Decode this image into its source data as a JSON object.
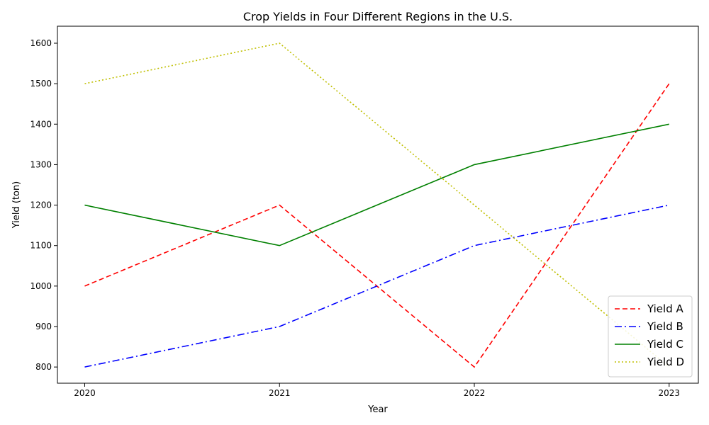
{
  "chart_data": {
    "type": "line",
    "title": "Crop Yields in Four Different Regions in the U.S.",
    "xlabel": "Year",
    "ylabel": "Yield (ton)",
    "x": [
      2020,
      2021,
      2022,
      2023
    ],
    "x_tick_labels": [
      "2020",
      "2021",
      "2022",
      "2023"
    ],
    "y_ticks": [
      800,
      900,
      1000,
      1100,
      1200,
      1300,
      1400,
      1500,
      1600
    ],
    "xlim": [
      2019.86,
      2023.15
    ],
    "ylim": [
      760,
      1642
    ],
    "grid": false,
    "legend_position": "lower-right",
    "series": [
      {
        "name": "Yield A",
        "values": [
          1000,
          1200,
          800,
          1500
        ],
        "color": "#ff0000",
        "style": "dashed"
      },
      {
        "name": "Yield B",
        "values": [
          800,
          900,
          1100,
          1200
        ],
        "color": "#0000ff",
        "style": "dashdot"
      },
      {
        "name": "Yield C",
        "values": [
          1200,
          1100,
          1300,
          1400
        ],
        "color": "#008000",
        "style": "solid"
      },
      {
        "name": "Yield D",
        "values": [
          1500,
          1600,
          1200,
          800
        ],
        "color": "#bfbf00",
        "style": "dotted"
      }
    ]
  }
}
